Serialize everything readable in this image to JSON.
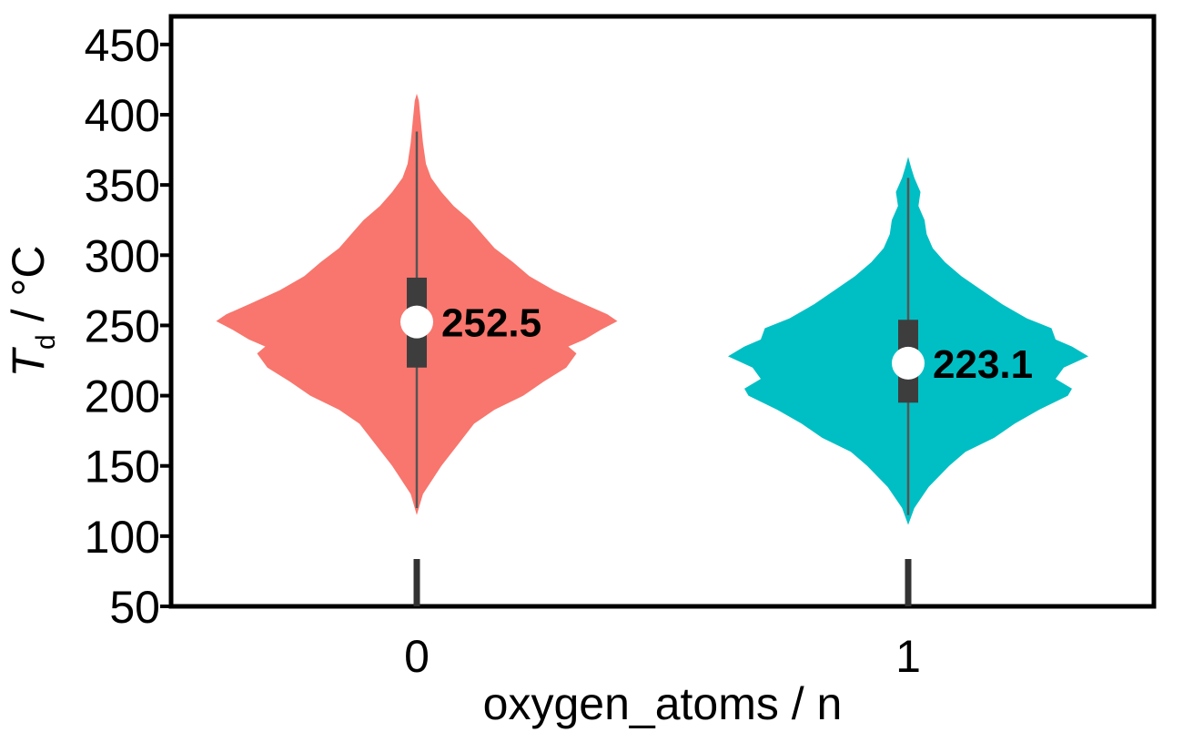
{
  "chart_data": {
    "type": "violin",
    "xlabel": "oxygen_atoms / n",
    "ylabel_main": "T",
    "ylabel_sub": "d",
    "ylabel_unit": " / °C",
    "ylim": [
      50,
      470
    ],
    "yticks": [
      50,
      100,
      150,
      200,
      250,
      300,
      350,
      400,
      450
    ],
    "categories": [
      "0",
      "1"
    ],
    "series": [
      {
        "category": "0",
        "color": "#F8766D",
        "median": 252.5,
        "median_label": "252.5",
        "q1": 220,
        "q3": 284,
        "whisker_low": 120,
        "whisker_high": 388,
        "density": [
          [
            115,
            0.0
          ],
          [
            130,
            0.03
          ],
          [
            150,
            0.12
          ],
          [
            165,
            0.2
          ],
          [
            180,
            0.28
          ],
          [
            190,
            0.38
          ],
          [
            200,
            0.52
          ],
          [
            210,
            0.62
          ],
          [
            220,
            0.73
          ],
          [
            230,
            0.78
          ],
          [
            235,
            0.74
          ],
          [
            240,
            0.82
          ],
          [
            247,
            0.9
          ],
          [
            253,
            0.98
          ],
          [
            258,
            0.93
          ],
          [
            265,
            0.82
          ],
          [
            275,
            0.67
          ],
          [
            285,
            0.55
          ],
          [
            295,
            0.47
          ],
          [
            305,
            0.38
          ],
          [
            315,
            0.32
          ],
          [
            325,
            0.26
          ],
          [
            335,
            0.18
          ],
          [
            345,
            0.12
          ],
          [
            355,
            0.07
          ],
          [
            365,
            0.045
          ],
          [
            380,
            0.03
          ],
          [
            395,
            0.02
          ],
          [
            410,
            0.01
          ],
          [
            415,
            0.0
          ]
        ]
      },
      {
        "category": "1",
        "color": "#00BFC4",
        "median": 223.1,
        "median_label": "223.1",
        "q1": 195,
        "q3": 254,
        "whisker_low": 115,
        "whisker_high": 355,
        "density": [
          [
            108,
            0.0
          ],
          [
            120,
            0.03
          ],
          [
            135,
            0.1
          ],
          [
            150,
            0.2
          ],
          [
            160,
            0.28
          ],
          [
            170,
            0.42
          ],
          [
            180,
            0.52
          ],
          [
            190,
            0.64
          ],
          [
            200,
            0.78
          ],
          [
            205,
            0.8
          ],
          [
            212,
            0.72
          ],
          [
            220,
            0.76
          ],
          [
            228,
            0.88
          ],
          [
            235,
            0.8
          ],
          [
            240,
            0.72
          ],
          [
            248,
            0.7
          ],
          [
            255,
            0.58
          ],
          [
            265,
            0.46
          ],
          [
            275,
            0.36
          ],
          [
            285,
            0.26
          ],
          [
            295,
            0.18
          ],
          [
            305,
            0.12
          ],
          [
            315,
            0.09
          ],
          [
            325,
            0.08
          ],
          [
            335,
            0.05
          ],
          [
            345,
            0.06
          ],
          [
            355,
            0.03
          ],
          [
            362,
            0.015
          ],
          [
            370,
            0.0
          ]
        ]
      }
    ]
  }
}
